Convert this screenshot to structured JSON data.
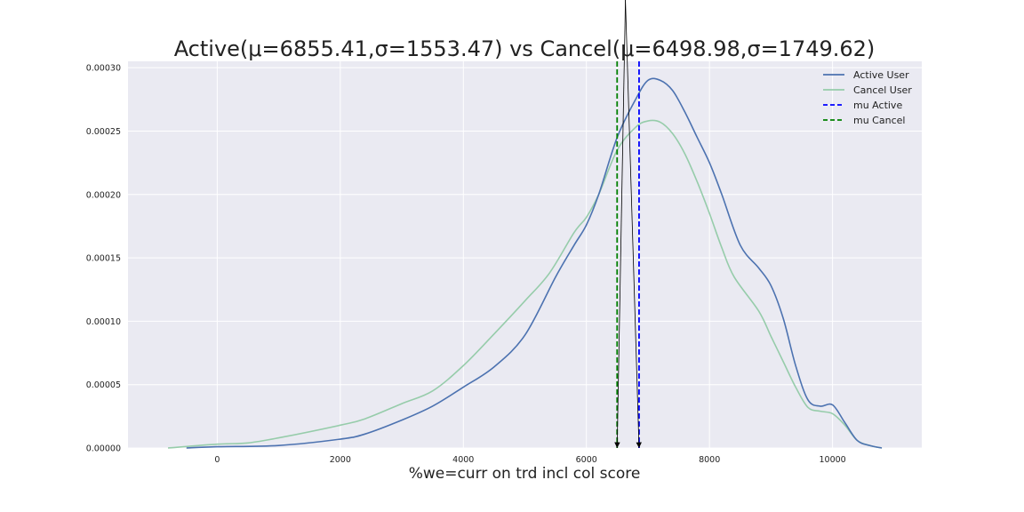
{
  "chart_data": {
    "type": "line",
    "title": "Active(μ=6855.41,σ=1553.47) vs Cancel(μ=6498.98,σ=1749.62)",
    "xlabel": "%we=curr on trd incl col score",
    "ylabel": "",
    "xlim": [
      -1450,
      11450
    ],
    "ylim": [
      0,
      0.000305
    ],
    "x_ticks": [
      0,
      2000,
      4000,
      6000,
      8000,
      10000
    ],
    "x_tick_labels": [
      "0",
      "2000",
      "4000",
      "6000",
      "8000",
      "10000"
    ],
    "y_ticks": [
      0,
      5e-05,
      0.0001,
      0.00015,
      0.0002,
      0.00025,
      0.0003
    ],
    "y_tick_labels": [
      "0.00000",
      "0.00005",
      "0.00010",
      "0.00015",
      "0.00020",
      "0.00025",
      "0.00030"
    ],
    "grid": true,
    "legend_position": "top-right",
    "series": [
      {
        "name": "Active User",
        "color": "#4c72b0",
        "x": [
          -500,
          0,
          1000,
          2000,
          2400,
          3000,
          3500,
          4000,
          4500,
          5000,
          5500,
          5800,
          6000,
          6200,
          6500,
          6800,
          7000,
          7200,
          7400,
          7600,
          7800,
          8000,
          8200,
          8500,
          8800,
          9000,
          9200,
          9400,
          9600,
          9800,
          10000,
          10200,
          10400,
          10600,
          10800
        ],
        "y": [
          0,
          1e-06,
          2e-06,
          7e-06,
          1.1e-05,
          2.2e-05,
          3.3e-05,
          4.8e-05,
          6.4e-05,
          8.9e-05,
          0.000135,
          0.00016,
          0.000176,
          0.0002,
          0.000245,
          0.000275,
          0.00029,
          0.00029,
          0.000282,
          0.000265,
          0.000245,
          0.000225,
          0.0002,
          0.00016,
          0.000142,
          0.000128,
          0.000102,
          6.5e-05,
          3.8e-05,
          3.3e-05,
          3.4e-05,
          2e-05,
          6e-06,
          2e-06,
          0
        ]
      },
      {
        "name": "Cancel User",
        "color": "#96ccaa",
        "x": [
          -800,
          0,
          500,
          1000,
          2000,
          2400,
          3000,
          3500,
          4000,
          4500,
          5000,
          5400,
          5800,
          6000,
          6200,
          6500,
          6800,
          7000,
          7200,
          7400,
          7600,
          7800,
          8000,
          8200,
          8400,
          8800,
          9000,
          9200,
          9400,
          9600,
          9800,
          10000,
          10200,
          10400,
          10600,
          10800
        ],
        "y": [
          0,
          3e-06,
          4e-06,
          8e-06,
          1.8e-05,
          2.3e-05,
          3.5e-05,
          4.5e-05,
          6.5e-05,
          9e-05,
          0.000116,
          0.000138,
          0.00017,
          0.000182,
          0.0002,
          0.000235,
          0.000253,
          0.000258,
          0.000257,
          0.000248,
          0.000232,
          0.00021,
          0.000185,
          0.000158,
          0.000135,
          0.000108,
          8.8e-05,
          6.8e-05,
          4.8e-05,
          3.2e-05,
          2.9e-05,
          2.7e-05,
          1.8e-05,
          6e-06,
          2e-06,
          0
        ]
      }
    ],
    "vlines": [
      {
        "name": "mu Active",
        "x": 6855.41,
        "color": "#0000ff",
        "style": "dashed"
      },
      {
        "name": "mu Cancel",
        "x": 6498.98,
        "color": "#008000",
        "style": "dashed"
      }
    ]
  }
}
